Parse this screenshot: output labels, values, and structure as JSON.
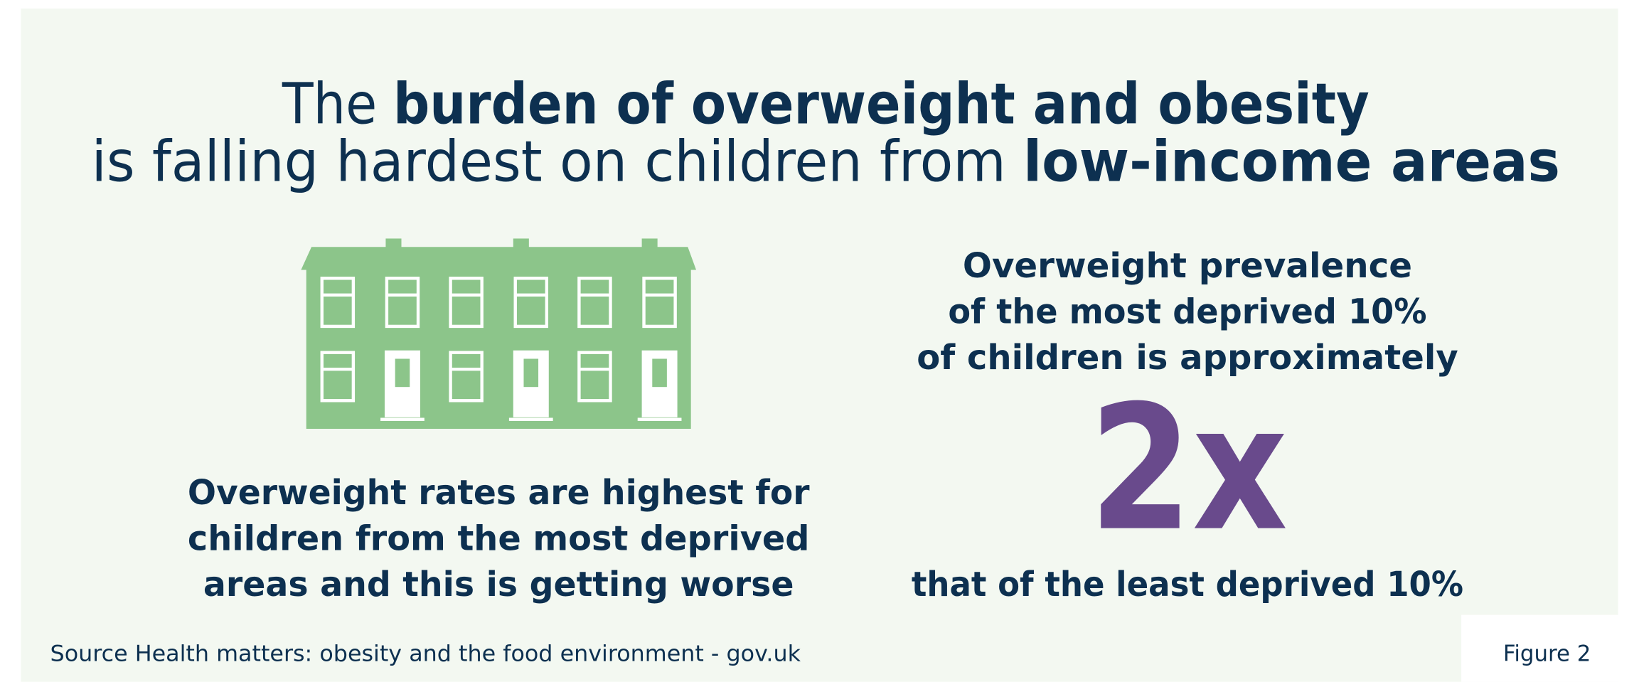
{
  "title": {
    "line1": [
      "The ",
      "burden of overweight and obesity"
    ],
    "line2": [
      "is falling hardest on children from ",
      "low-income areas"
    ]
  },
  "left_caption": [
    "Overweight rates are highest for",
    "children from the most deprived",
    "areas and this is getting worse"
  ],
  "right_text": [
    "Overweight prevalence",
    "of the most deprived 10%",
    "of children is approximately"
  ],
  "highlight": "2x",
  "right_footer": "that of the least deprived 10%",
  "source": "Source Health matters: obesity and the food environment - gov.uk",
  "figure_label": "Figure 2"
}
